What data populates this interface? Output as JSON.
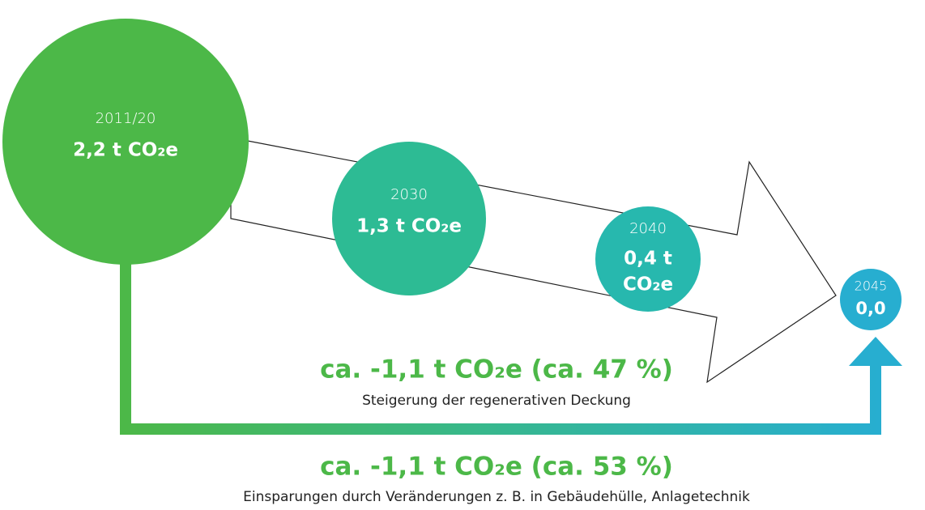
{
  "milestones": [
    {
      "year": "2011/20",
      "value": [
        "2,2 t CO₂e"
      ]
    },
    {
      "year": "2030",
      "value": [
        "1,3 t CO₂e"
      ]
    },
    {
      "year": "2040",
      "value": [
        "0,4 t",
        "CO₂e"
      ]
    },
    {
      "year": "2045",
      "value": [
        "0,0"
      ]
    }
  ],
  "savings": [
    {
      "amount": "ca. -1,1 t CO₂e (ca. 47 %)",
      "description": "Steigerung der regenerativen Deckung"
    },
    {
      "amount": "ca. -1,1 t CO₂e (ca. 53 %)",
      "description": "Einsparungen durch Veränderungen z. B. in Gebäudehülle, Anlagetechnik"
    }
  ]
}
